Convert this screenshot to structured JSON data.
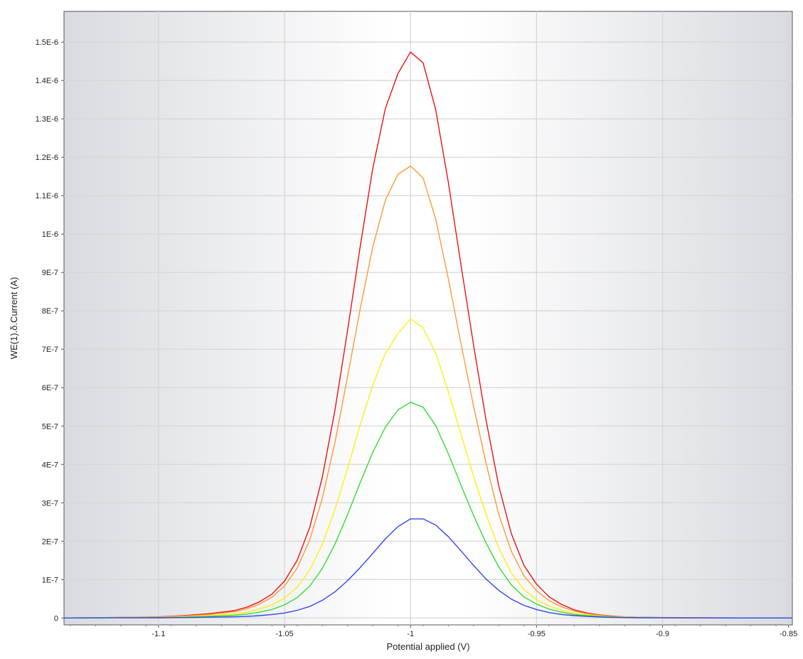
{
  "chart_data": {
    "type": "line",
    "title": "",
    "xlabel": "Potential applied (V)",
    "ylabel": "WE(1).δ.Current (A)",
    "xlim": [
      -1.1375,
      -0.8485
    ],
    "ylim": [
      -1.8e-08,
      1.58e-06
    ],
    "x_ticks": [
      -1.1,
      -1.05,
      -1,
      -0.95,
      -0.9,
      -0.85
    ],
    "x_tick_labels": [
      "-1.1",
      "-1.05",
      "-1",
      "-0.95",
      "-0.9",
      "-0.85"
    ],
    "y_ticks": [
      0,
      1e-07,
      2e-07,
      3e-07,
      4e-07,
      5e-07,
      6e-07,
      7e-07,
      8e-07,
      9e-07,
      1e-06,
      1.1e-06,
      1.2e-06,
      1.3e-06,
      1.4e-06,
      1.5e-06
    ],
    "y_tick_labels": [
      "0",
      "1E-7",
      "2E-7",
      "3E-7",
      "4E-7",
      "5E-7",
      "6E-7",
      "7E-7",
      "8E-7",
      "9E-7",
      "1E-6",
      "1.1E-6",
      "1.2E-6",
      "1.3E-6",
      "1.4E-6",
      "1.5E-6"
    ],
    "grid": true,
    "legend": "none",
    "x": [
      -1.1375,
      -1.12,
      -1.1,
      -1.09,
      -1.08,
      -1.07,
      -1.065,
      -1.06,
      -1.055,
      -1.05,
      -1.045,
      -1.04,
      -1.035,
      -1.03,
      -1.025,
      -1.02,
      -1.015,
      -1.01,
      -1.005,
      -1.0,
      -0.995,
      -0.99,
      -0.985,
      -0.98,
      -0.975,
      -0.97,
      -0.965,
      -0.96,
      -0.955,
      -0.95,
      -0.945,
      -0.94,
      -0.935,
      -0.93,
      -0.925,
      -0.92,
      -0.915,
      -0.91,
      -0.905,
      -0.9,
      -0.89,
      -0.88,
      -0.87,
      -0.86,
      -0.8485
    ],
    "series": [
      {
        "color": "#ee1111",
        "values": [
          0.0,
          0.001,
          0.003,
          0.006,
          0.011,
          0.019,
          0.028,
          0.042,
          0.062,
          0.096,
          0.15,
          0.236,
          0.367,
          0.541,
          0.748,
          0.966,
          1.17,
          1.327,
          1.418,
          1.474,
          1.446,
          1.324,
          1.135,
          0.92,
          0.711,
          0.514,
          0.344,
          0.22,
          0.137,
          0.088,
          0.055,
          0.035,
          0.021,
          0.013,
          0.008,
          0.005,
          0.003,
          0.002,
          0.0015,
          0.001,
          0.0005,
          0.0003,
          0.0002,
          0.0001,
          0.0
        ]
      },
      {
        "color": "#ff9933",
        "values": [
          0.0,
          0.001,
          0.002,
          0.005,
          0.009,
          0.016,
          0.024,
          0.036,
          0.054,
          0.083,
          0.13,
          0.203,
          0.312,
          0.457,
          0.628,
          0.804,
          0.966,
          1.088,
          1.156,
          1.177,
          1.146,
          1.039,
          0.884,
          0.715,
          0.552,
          0.402,
          0.27,
          0.174,
          0.11,
          0.071,
          0.045,
          0.029,
          0.018,
          0.011,
          0.007,
          0.004,
          0.003,
          0.002,
          0.0012,
          0.0008,
          0.0004,
          0.0002,
          0.0001,
          0.0001,
          0.0
        ]
      },
      {
        "color": "#ffee11",
        "values": [
          0.0,
          0.001,
          0.002,
          0.003,
          0.006,
          0.01,
          0.015,
          0.023,
          0.034,
          0.052,
          0.08,
          0.125,
          0.192,
          0.282,
          0.389,
          0.502,
          0.606,
          0.689,
          0.741,
          0.779,
          0.756,
          0.69,
          0.59,
          0.478,
          0.369,
          0.269,
          0.182,
          0.117,
          0.074,
          0.048,
          0.031,
          0.02,
          0.012,
          0.008,
          0.005,
          0.003,
          0.002,
          0.0012,
          0.0008,
          0.0005,
          0.0003,
          0.0002,
          0.0001,
          0.0,
          0.0
        ]
      },
      {
        "color": "#33dd33",
        "values": [
          0.0,
          0.0005,
          0.001,
          0.002,
          0.004,
          0.007,
          0.01,
          0.015,
          0.022,
          0.034,
          0.053,
          0.083,
          0.129,
          0.192,
          0.269,
          0.352,
          0.431,
          0.497,
          0.542,
          0.562,
          0.549,
          0.501,
          0.428,
          0.346,
          0.267,
          0.195,
          0.133,
          0.086,
          0.055,
          0.036,
          0.023,
          0.015,
          0.009,
          0.006,
          0.004,
          0.0025,
          0.0015,
          0.001,
          0.0006,
          0.0004,
          0.0002,
          0.0001,
          0.0001,
          0.0,
          0.0
        ]
      },
      {
        "color": "#3344ee",
        "values": [
          0.0,
          0.0003,
          0.0006,
          0.001,
          0.002,
          0.003,
          0.004,
          0.006,
          0.009,
          0.013,
          0.02,
          0.03,
          0.046,
          0.068,
          0.097,
          0.131,
          0.168,
          0.206,
          0.238,
          0.258,
          0.258,
          0.242,
          0.212,
          0.175,
          0.137,
          0.101,
          0.072,
          0.049,
          0.033,
          0.022,
          0.014,
          0.009,
          0.006,
          0.004,
          0.0025,
          0.0016,
          0.001,
          0.0006,
          0.0004,
          0.0003,
          0.0002,
          0.0001,
          0.0,
          0.0,
          0.0
        ]
      }
    ],
    "value_scale_note": "",
    "y_unit_multiplier": 1e-06
  }
}
